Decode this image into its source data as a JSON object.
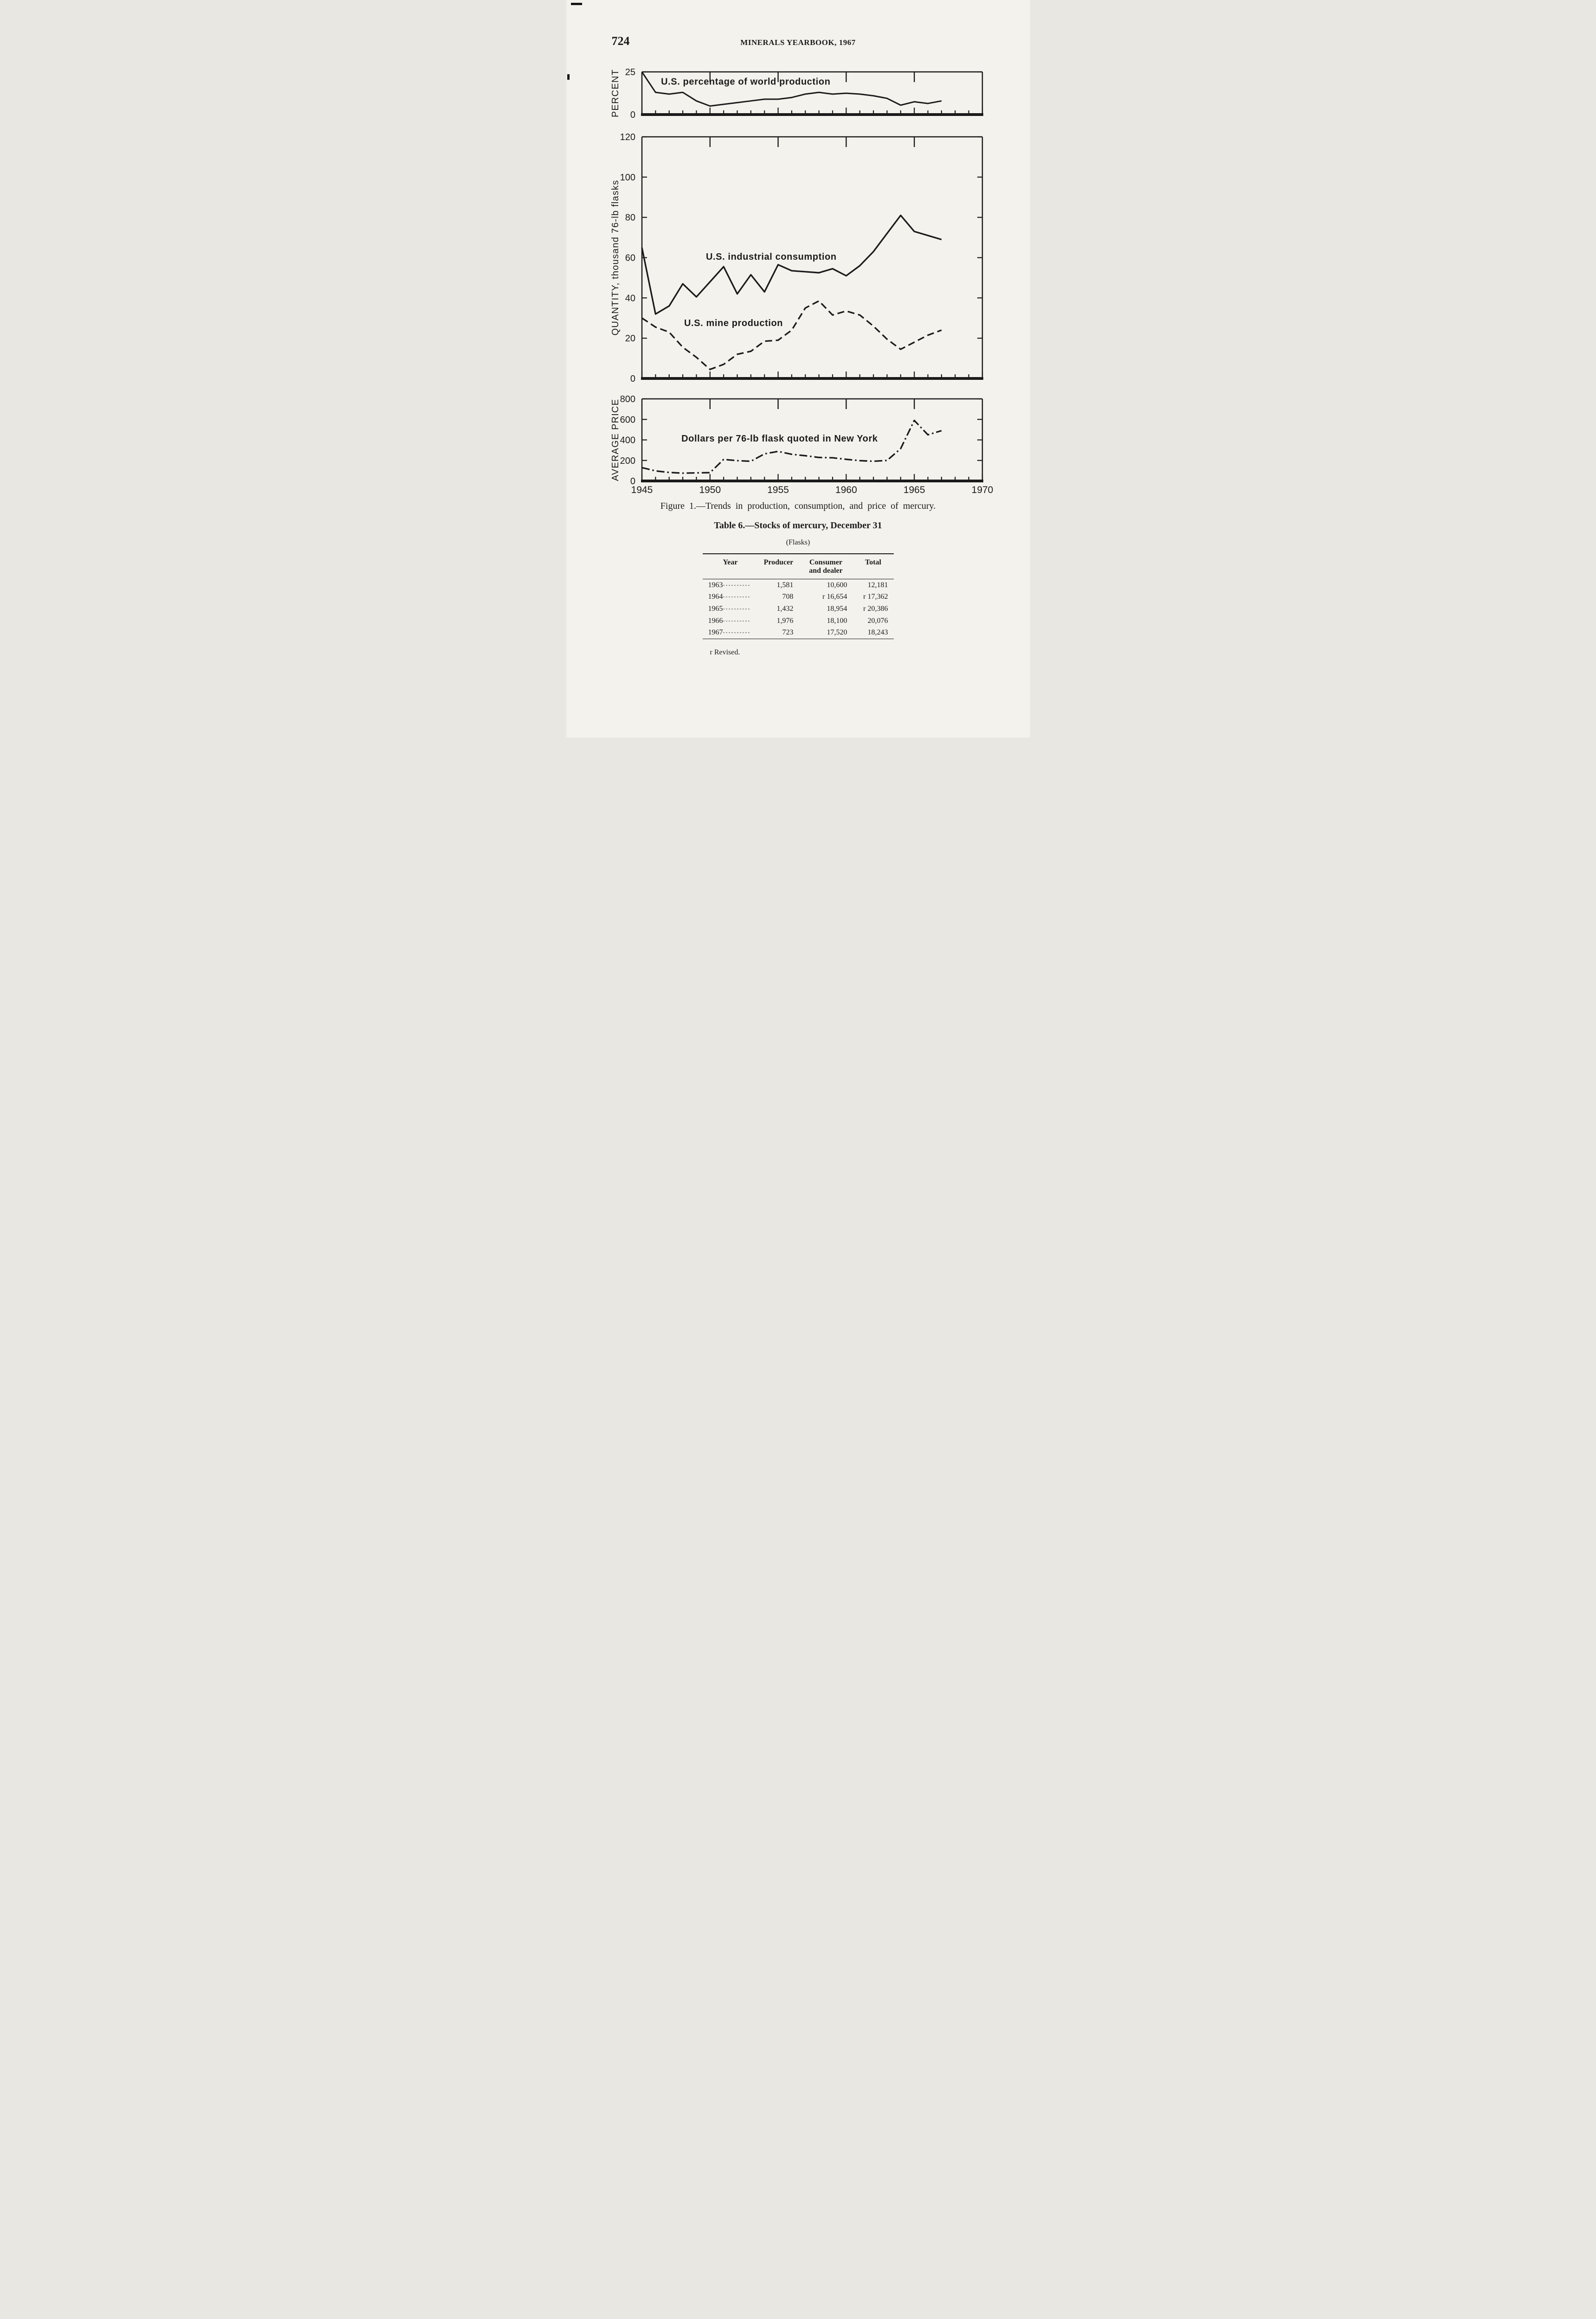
{
  "page": {
    "number": "724",
    "header": "MINERALS YEARBOOK, 1967",
    "figure_caption": "Figure 1.—Trends in production, consumption, and price of mercury."
  },
  "chart_data": [
    {
      "type": "line",
      "ylabel": "PERCENT",
      "ylim": [
        0,
        25
      ],
      "yticks": [
        0,
        25
      ],
      "xlim": [
        1945,
        1970
      ],
      "grid": false,
      "x": [
        1945,
        1946,
        1947,
        1948,
        1949,
        1950,
        1951,
        1952,
        1953,
        1954,
        1955,
        1956,
        1957,
        1958,
        1959,
        1960,
        1961,
        1962,
        1963,
        1964,
        1965,
        1966,
        1967
      ],
      "series": [
        {
          "name": "U.S. percentage of world production",
          "style": "solid",
          "values": [
            25,
            13,
            12,
            13,
            8,
            5,
            6,
            7,
            8,
            9,
            9,
            10,
            12,
            13,
            12,
            12.5,
            12,
            11,
            9.5,
            5.5,
            7.5,
            6.5,
            8
          ]
        }
      ],
      "annotations": [
        {
          "text": "U.S. percentage of world production",
          "x": 1946.4,
          "y": 17.5
        }
      ]
    },
    {
      "type": "line",
      "ylabel": "QUANTITY, thousand 76-lb flasks",
      "ylim": [
        0,
        120
      ],
      "yticks": [
        0,
        20,
        40,
        60,
        80,
        100,
        120
      ],
      "xlim": [
        1945,
        1970
      ],
      "grid": false,
      "x": [
        1945,
        1946,
        1947,
        1948,
        1949,
        1950,
        1951,
        1952,
        1953,
        1954,
        1955,
        1956,
        1957,
        1958,
        1959,
        1960,
        1961,
        1962,
        1963,
        1964,
        1965,
        1966,
        1967
      ],
      "series": [
        {
          "name": "U.S. industrial consumption",
          "style": "solid",
          "values": [
            65,
            32,
            36,
            47,
            40.5,
            48,
            55.5,
            42,
            51.5,
            43,
            56.5,
            53.5,
            53,
            52.5,
            54.5,
            51,
            56,
            63,
            72,
            81,
            73,
            71,
            69
          ]
        },
        {
          "name": "U.S. mine production",
          "style": "dashed",
          "values": [
            30,
            25.5,
            23,
            15.5,
            10.5,
            4.5,
            7,
            12,
            13.5,
            18.5,
            19,
            24,
            35,
            38.5,
            31.5,
            33.5,
            31.5,
            26,
            19.5,
            14.5,
            18,
            21.5,
            24
          ]
        }
      ],
      "annotations": [
        {
          "text": "U.S. industrial consumption",
          "x": 1949.7,
          "y": 59
        },
        {
          "text": "U.S. mine production",
          "x": 1948.1,
          "y": 26
        }
      ]
    },
    {
      "type": "line",
      "ylabel": "AVERAGE PRICE",
      "ylim": [
        0,
        800
      ],
      "yticks": [
        0,
        200,
        400,
        600,
        800
      ],
      "xlim": [
        1945,
        1970
      ],
      "xticks": [
        1945,
        1950,
        1955,
        1960,
        1965,
        1970
      ],
      "grid": false,
      "x": [
        1945,
        1946,
        1947,
        1948,
        1949,
        1950,
        1951,
        1952,
        1953,
        1954,
        1955,
        1956,
        1957,
        1958,
        1959,
        1960,
        1961,
        1962,
        1963,
        1964,
        1965,
        1966,
        1967
      ],
      "series": [
        {
          "name": "Dollars per 76-lb flask quoted in New York",
          "style": "dashdot",
          "values": [
            130,
            98,
            83,
            76,
            79,
            81,
            210,
            198,
            192,
            264,
            288,
            260,
            246,
            229,
            226,
            211,
            198,
            192,
            200,
            315,
            590,
            450,
            490
          ]
        }
      ],
      "annotations": [
        {
          "text": "Dollars per 76-lb flask quoted in New York",
          "x": 1947.9,
          "y": 385
        }
      ]
    }
  ],
  "table6": {
    "title": "Table 6.—Stocks of mercury, December 31",
    "subtitle": "(Flasks)",
    "columns": [
      "Year",
      "Producer",
      "Consumer and dealer",
      "Total"
    ],
    "year_leader": "----------",
    "rows": [
      {
        "year": "1963",
        "producer": "1,581",
        "consumer": "10,600",
        "total": "12,181"
      },
      {
        "year": "1964",
        "producer": "708",
        "consumer": "r 16,654",
        "total": "r 17,362"
      },
      {
        "year": "1965",
        "producer": "1,432",
        "consumer": "18,954",
        "total": "r 20,386"
      },
      {
        "year": "1966",
        "producer": "1,976",
        "consumer": "18,100",
        "total": "20,076"
      },
      {
        "year": "1967",
        "producer": "723",
        "consumer": "17,520",
        "total": "18,243"
      }
    ],
    "footnote": "r Revised."
  }
}
